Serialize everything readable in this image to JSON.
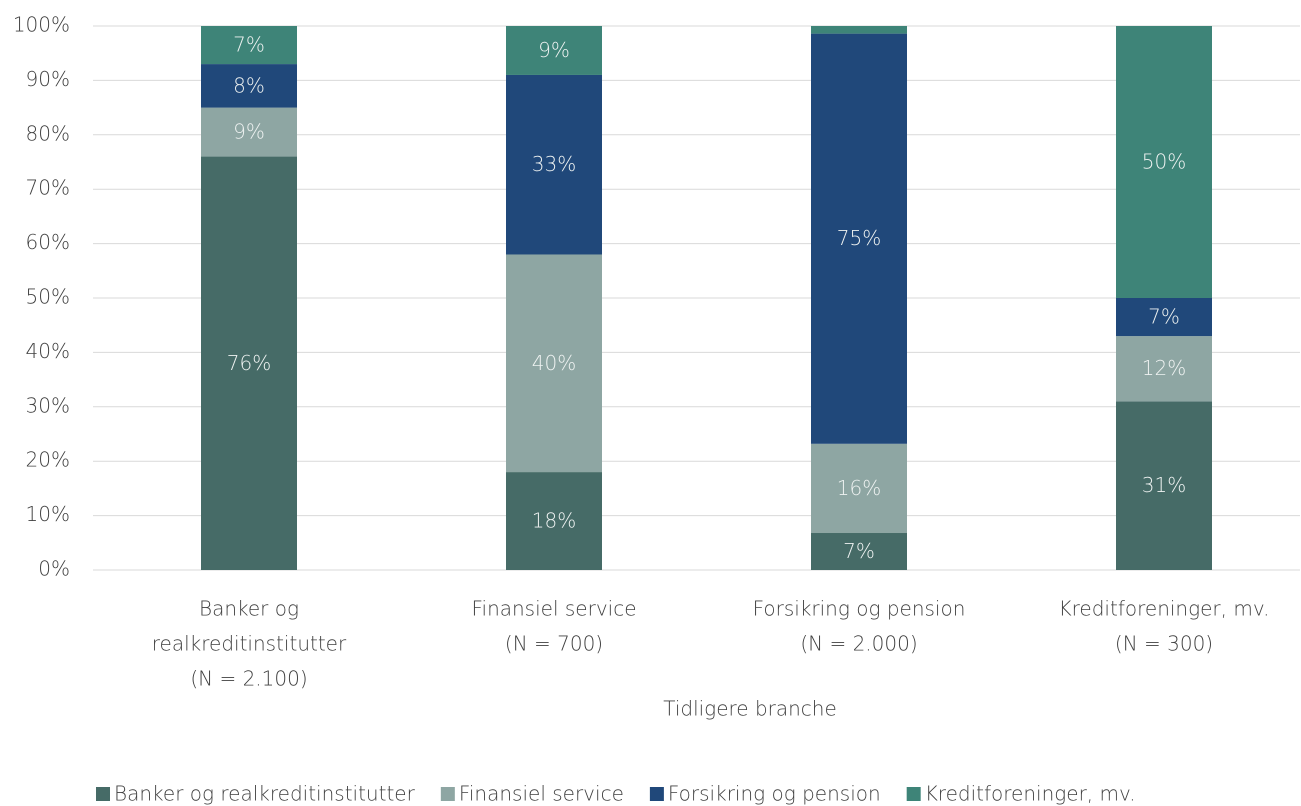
{
  "chart_data": {
    "type": "stacked_bar",
    "x_axis_label": "Tidligere branche",
    "categories": [
      [
        "Banker og",
        "realkreditinstitutter",
        "(N = 2.100)"
      ],
      [
        "Finansiel service",
        "(N = 700)"
      ],
      [
        "Forsikring og pension",
        "(N = 2.000)"
      ],
      [
        "Kreditforeninger, mv.",
        "(N = 300)"
      ]
    ],
    "series": [
      {
        "name": "Banker og realkreditinstitutter",
        "color": "#466b67",
        "values": [
          76,
          18,
          6.8,
          31
        ],
        "value_labels": [
          "76%",
          "18%",
          "7%",
          "31%"
        ]
      },
      {
        "name": "Finansiel service",
        "color": "#8ea6a3",
        "values": [
          9,
          40,
          16.4,
          12
        ],
        "value_labels": [
          "9%",
          "40%",
          "16%",
          "12%"
        ]
      },
      {
        "name": "Forsikring og pension",
        "color": "#20487a",
        "values": [
          8,
          33,
          75.4,
          7
        ],
        "value_labels": [
          "8%",
          "33%",
          "75%",
          "7%"
        ]
      },
      {
        "name": "Kreditforeninger, mv.",
        "color": "#3e8478",
        "values": [
          7,
          9,
          1.4,
          50
        ],
        "value_labels": [
          "7%",
          "9%",
          null,
          "50%"
        ]
      }
    ],
    "ylim": [
      0,
      100
    ],
    "yticks": [
      {
        "value": 0,
        "label": "0%"
      },
      {
        "value": 10,
        "label": "10%"
      },
      {
        "value": 20,
        "label": "20%"
      },
      {
        "value": 30,
        "label": "30%"
      },
      {
        "value": 40,
        "label": "40%"
      },
      {
        "value": 50,
        "label": "50%"
      },
      {
        "value": 60,
        "label": "60%"
      },
      {
        "value": 70,
        "label": "70%"
      },
      {
        "value": 80,
        "label": "80%"
      },
      {
        "value": 90,
        "label": "90%"
      },
      {
        "value": 100,
        "label": "100%"
      }
    ],
    "grid": true,
    "legend": "bottom"
  }
}
